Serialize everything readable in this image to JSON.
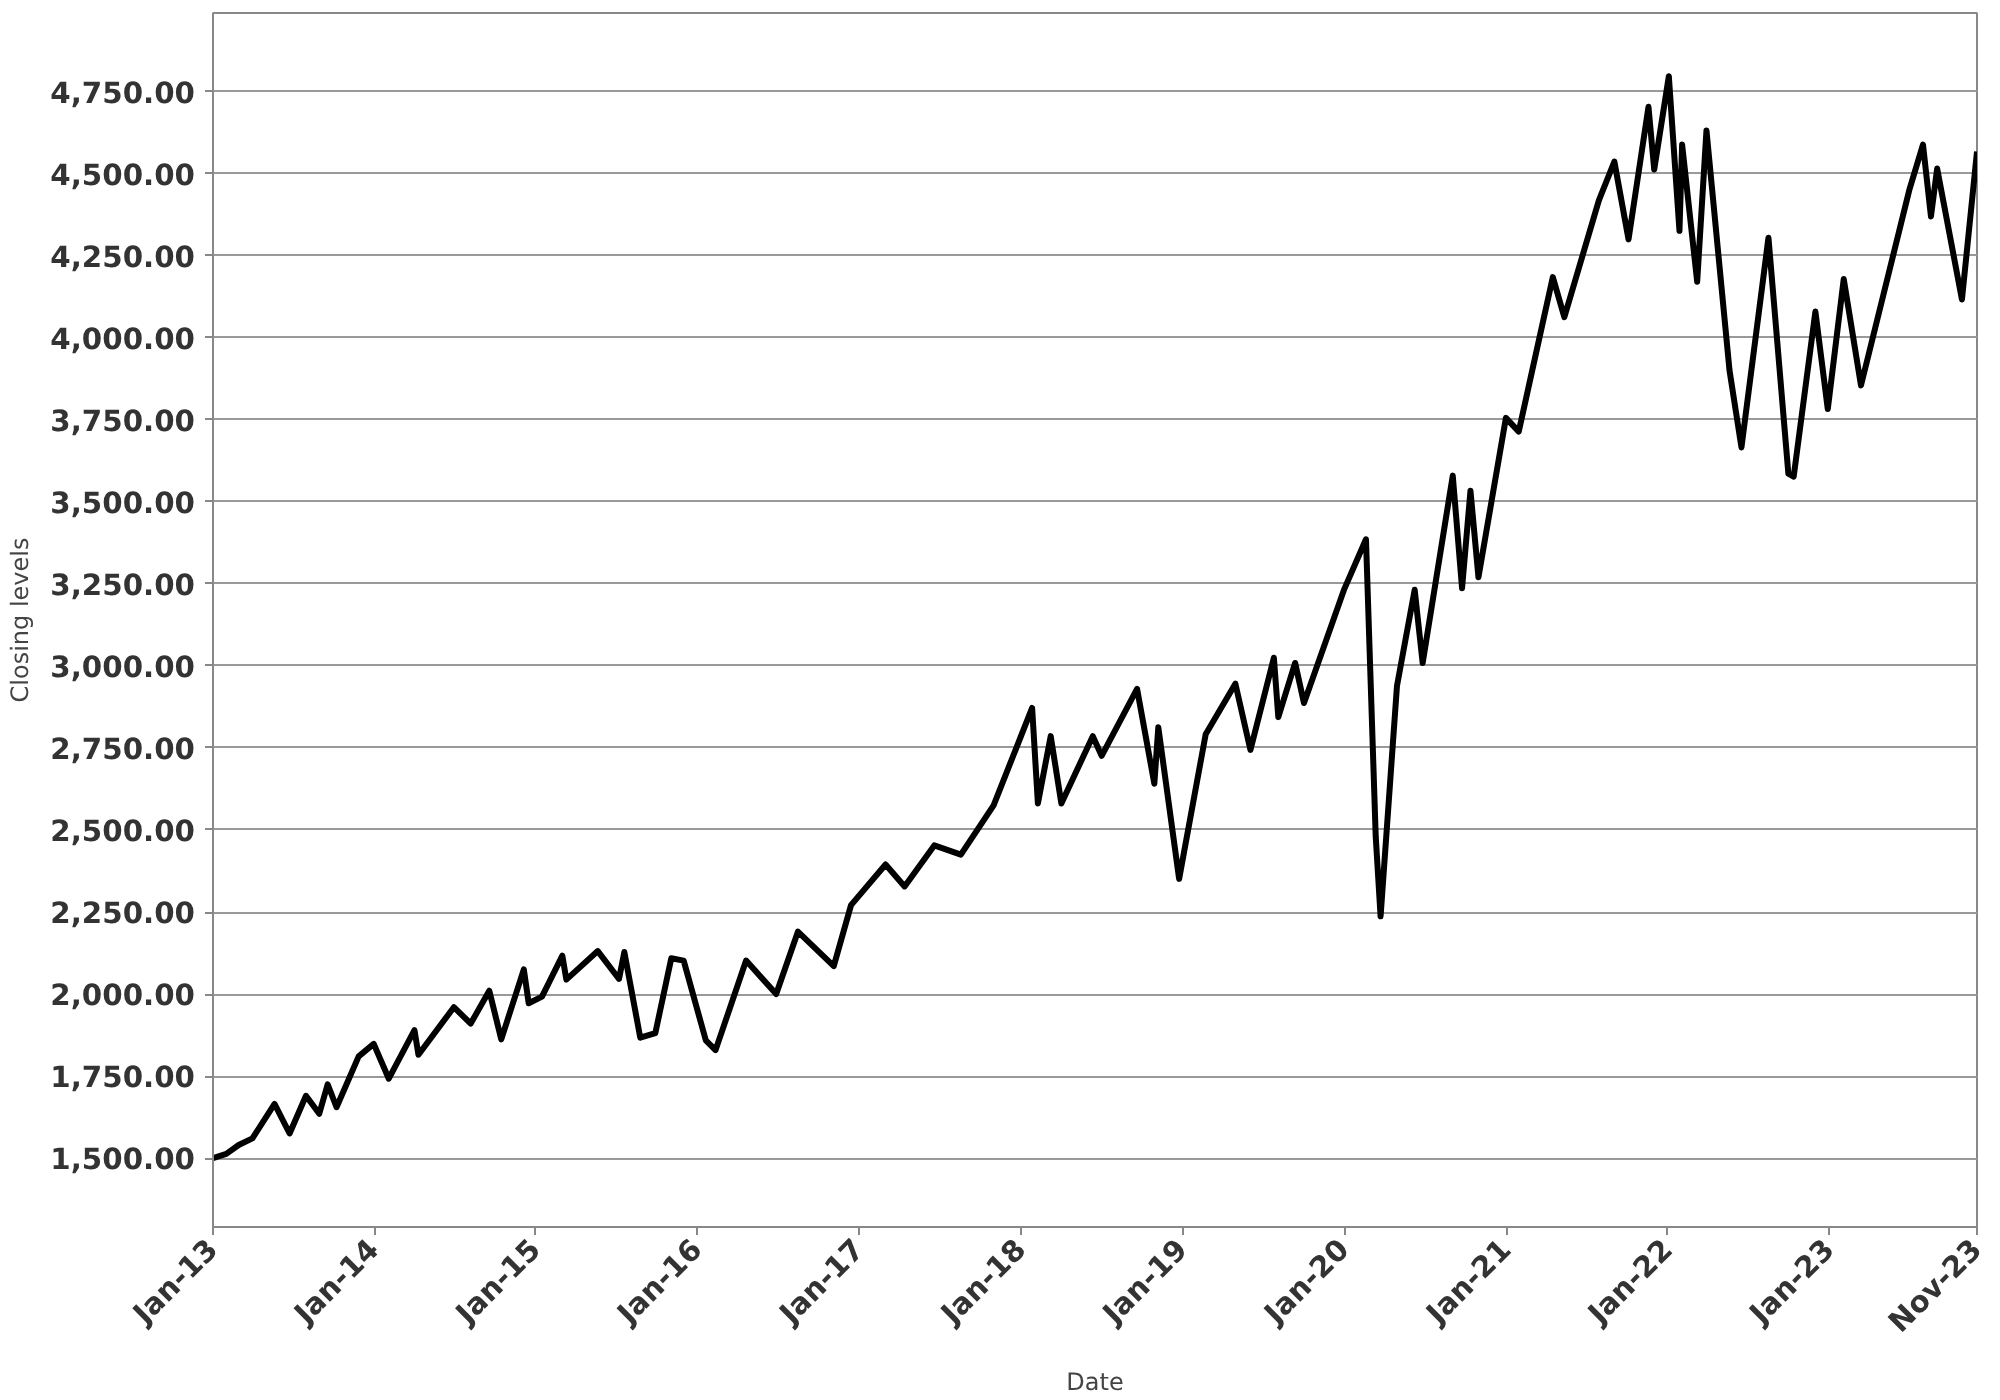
{
  "chart_data": {
    "type": "line",
    "xlabel": "Date",
    "ylabel": "Closing levels",
    "x": [
      "2013-01-02",
      "2013-02-01",
      "2013-03-01",
      "2013-04-01",
      "2013-05-21",
      "2013-06-24",
      "2013-07-31",
      "2013-08-30",
      "2013-09-18",
      "2013-10-08",
      "2013-11-27",
      "2013-12-31",
      "2014-02-03",
      "2014-04-02",
      "2014-04-11",
      "2014-06-30",
      "2014-08-07",
      "2014-09-18",
      "2014-10-15",
      "2014-12-05",
      "2014-12-16",
      "2015-01-15",
      "2015-03-02",
      "2015-03-11",
      "2015-05-21",
      "2015-07-08",
      "2015-07-20",
      "2015-08-25",
      "2015-09-28",
      "2015-11-03",
      "2015-12-01",
      "2016-01-20",
      "2016-02-11",
      "2016-04-20",
      "2016-06-27",
      "2016-08-15",
      "2016-11-04",
      "2016-12-13",
      "2017-03-01",
      "2017-04-13",
      "2017-06-19",
      "2017-08-18",
      "2017-10-31",
      "2018-01-26",
      "2018-02-08",
      "2018-03-09",
      "2018-04-02",
      "2018-06-12",
      "2018-07-02",
      "2018-09-20",
      "2018-10-29",
      "2018-11-07",
      "2018-12-24",
      "2019-02-22",
      "2019-04-30",
      "2019-06-03",
      "2019-07-26",
      "2019-08-05",
      "2019-09-12",
      "2019-10-02",
      "2019-12-31",
      "2020-02-19",
      "2020-03-12",
      "2020-03-23",
      "2020-04-29",
      "2020-06-08",
      "2020-06-26",
      "2020-09-02",
      "2020-09-23",
      "2020-10-12",
      "2020-10-30",
      "2020-12-31",
      "2021-01-29",
      "2021-04-16",
      "2021-05-12",
      "2021-07-29",
      "2021-09-02",
      "2021-10-04",
      "2021-11-18",
      "2021-12-01",
      "2022-01-03",
      "2022-01-27",
      "2022-02-02",
      "2022-03-08",
      "2022-03-29",
      "2022-05-20",
      "2022-06-16",
      "2022-08-16",
      "2022-09-30",
      "2022-10-12",
      "2022-11-30",
      "2022-12-28",
      "2023-02-02",
      "2023-03-13",
      "2023-06-30",
      "2023-07-31",
      "2023-08-18",
      "2023-09-01",
      "2023-10-27",
      "2023-11-30"
    ],
    "series": [
      {
        "color": "#000000",
        "values": [
          1500,
          1513,
          1540,
          1560,
          1665,
          1575,
          1690,
          1635,
          1725,
          1655,
          1810,
          1848,
          1742,
          1890,
          1815,
          1960,
          1910,
          2010,
          1862,
          2075,
          1972,
          1992,
          2117,
          2044,
          2131,
          2046,
          2128,
          1867,
          1881,
          2109,
          2102,
          1859,
          1829,
          2102,
          2000,
          2190,
          2085,
          2271,
          2395,
          2328,
          2453,
          2425,
          2575,
          2872,
          2581,
          2786,
          2581,
          2786,
          2726,
          2930,
          2641,
          2813,
          2351,
          2792,
          2946,
          2744,
          3025,
          2844,
          3009,
          2887,
          3231,
          3386,
          2480,
          2237,
          2939,
          3232,
          3009,
          3580,
          3237,
          3534,
          3270,
          3756,
          3714,
          4185,
          4063,
          4419,
          4537,
          4300,
          4704,
          4513,
          4797,
          4326,
          4589,
          4171,
          4632,
          3901,
          3666,
          4305,
          3586,
          3577,
          4080,
          3783,
          4179,
          3855,
          4450,
          4589,
          4370,
          4516,
          4117,
          4568
        ]
      }
    ],
    "xlim": [
      "2013-01-02",
      "2023-11-30"
    ],
    "xticks": [
      {
        "value": "2013-01-02",
        "label": "Jan-13"
      },
      {
        "value": "2014-01-01",
        "label": "Jan-14"
      },
      {
        "value": "2015-01-01",
        "label": "Jan-15"
      },
      {
        "value": "2016-01-01",
        "label": "Jan-16"
      },
      {
        "value": "2017-01-01",
        "label": "Jan-17"
      },
      {
        "value": "2018-01-01",
        "label": "Jan-18"
      },
      {
        "value": "2019-01-01",
        "label": "Jan-19"
      },
      {
        "value": "2020-01-01",
        "label": "Jan-20"
      },
      {
        "value": "2021-01-01",
        "label": "Jan-21"
      },
      {
        "value": "2022-01-01",
        "label": "Jan-22"
      },
      {
        "value": "2023-01-01",
        "label": "Jan-23"
      },
      {
        "value": "2023-11-30",
        "label": "Nov-23"
      }
    ],
    "ylim": [
      1290,
      4990
    ],
    "yticks": [
      {
        "value": 1500,
        "label": "1,500.00"
      },
      {
        "value": 1750,
        "label": "1,750.00"
      },
      {
        "value": 2000,
        "label": "2,000.00"
      },
      {
        "value": 2250,
        "label": "2,250.00"
      },
      {
        "value": 2500,
        "label": "2,500.00"
      },
      {
        "value": 2750,
        "label": "2,750.00"
      },
      {
        "value": 3000,
        "label": "3,000.00"
      },
      {
        "value": 3250,
        "label": "3,250.00"
      },
      {
        "value": 3500,
        "label": "3,500.00"
      },
      {
        "value": 3750,
        "label": "3,750.00"
      },
      {
        "value": 4000,
        "label": "4,000.00"
      },
      {
        "value": 4250,
        "label": "4,250.00"
      },
      {
        "value": 4500,
        "label": "4,500.00"
      },
      {
        "value": 4750,
        "label": "4,750.00"
      }
    ],
    "grid": "y",
    "line_style": "solid"
  }
}
